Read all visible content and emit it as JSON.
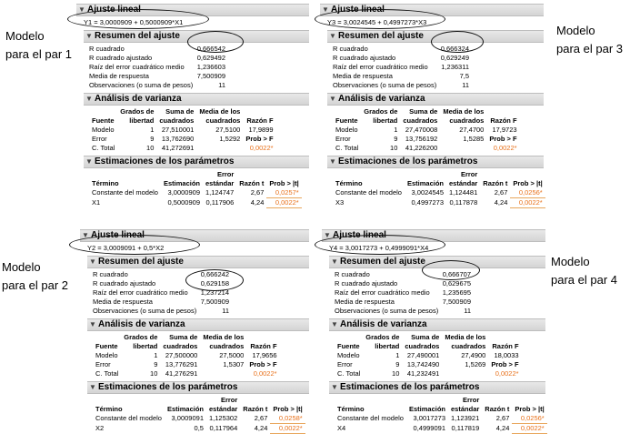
{
  "labels": {
    "m1": [
      "Modelo",
      "para el par 1"
    ],
    "m2": [
      "Modelo",
      "para el par 2"
    ],
    "m3": [
      "Modelo",
      "para el par 3"
    ],
    "m4": [
      "Modelo",
      "para el par 4"
    ]
  },
  "sections": {
    "fit": "Ajuste lineal",
    "summary": "Resumen del ajuste",
    "anova": "Análisis de varianza",
    "params": "Estimaciones de los parámetros"
  },
  "summary_labels": {
    "r2": "R cuadrado",
    "r2adj": "R cuadrado ajustado",
    "rmse": "Raíz del error cuadrático medio",
    "mean": "Media de respuesta",
    "obs": "Observaciones (o suma de pesos)"
  },
  "anova_headers": {
    "src": "Fuente",
    "df": [
      "Grados de",
      "libertad"
    ],
    "ss": [
      "Suma de",
      "cuadrados"
    ],
    "ms": [
      "Media de los",
      "cuadrados"
    ],
    "f": "Razón F",
    "p": "Prob > F"
  },
  "anova_sources": [
    "Modelo",
    "Error",
    "C. Total"
  ],
  "param_headers": {
    "term": "Término",
    "est": "Estimación",
    "se": [
      "Error",
      "estándar"
    ],
    "t": "Razón t",
    "p": "Prob > |t|"
  },
  "intercept_label": "Constante del modelo",
  "panels": {
    "p1": {
      "equation": "Y1 = 3,0000909 + 0,5000909*X1",
      "summary": [
        "0,666542",
        "0,629492",
        "1,236603",
        "7,500909",
        "11"
      ],
      "anova": {
        "model": [
          "1",
          "27,510001",
          "27,5100",
          "17,9899"
        ],
        "error": [
          "9",
          "13,762690",
          "1,5292"
        ],
        "total": [
          "10",
          "41,272691"
        ],
        "p": "0,0022*"
      },
      "params": [
        {
          "term": "Constante del modelo",
          "est": "3,0000909",
          "se": "1,124747",
          "t": "2,67",
          "p": "0,0257*"
        },
        {
          "term": "X1",
          "est": "0,5000909",
          "se": "0,117906",
          "t": "4,24",
          "p": "0,0022*"
        }
      ]
    },
    "p3": {
      "equation": "Y3 = 3,0024545 + 0,4997273*X3",
      "summary": [
        "0,666324",
        "0,629249",
        "1,236311",
        "7,5",
        "11"
      ],
      "anova": {
        "model": [
          "1",
          "27,470008",
          "27,4700",
          "17,9723"
        ],
        "error": [
          "9",
          "13,756192",
          "1,5285"
        ],
        "total": [
          "10",
          "41,226200"
        ],
        "p": "0,0022*"
      },
      "params": [
        {
          "term": "Constante del modelo",
          "est": "3,0024545",
          "se": "1,124481",
          "t": "2,67",
          "p": "0,0256*"
        },
        {
          "term": "X3",
          "est": "0,4997273",
          "se": "0,117878",
          "t": "4,24",
          "p": "0,0022*"
        }
      ]
    },
    "p2": {
      "equation": "Y2 = 3,0009091 + 0,5*X2",
      "summary": [
        "0,666242",
        "0,629158",
        "1,237214",
        "7,500909",
        "11"
      ],
      "anova": {
        "model": [
          "1",
          "27,500000",
          "27,5000",
          "17,9656"
        ],
        "error": [
          "9",
          "13,776291",
          "1,5307"
        ],
        "total": [
          "10",
          "41,276291"
        ],
        "p": "0,0022*"
      },
      "params": [
        {
          "term": "Constante del modelo",
          "est": "3,0009091",
          "se": "1,125302",
          "t": "2,67",
          "p": "0,0258*"
        },
        {
          "term": "X2",
          "est": "0,5",
          "se": "0,117964",
          "t": "4,24",
          "p": "0,0022*"
        }
      ]
    },
    "p4": {
      "equation": "Y4 = 3,0017273 + 0,4999091*X4",
      "summary": [
        "0,666707",
        "0,629675",
        "1,235695",
        "7,500909",
        "11"
      ],
      "anova": {
        "model": [
          "1",
          "27,490001",
          "27,4900",
          "18,0033"
        ],
        "error": [
          "9",
          "13,742490",
          "1,5269"
        ],
        "total": [
          "10",
          "41,232491"
        ],
        "p": "0,0022*"
      },
      "params": [
        {
          "term": "Constante del modelo",
          "est": "3,0017273",
          "se": "1,123921",
          "t": "2,67",
          "p": "0,0256*"
        },
        {
          "term": "X4",
          "est": "0,4999091",
          "se": "0,117819",
          "t": "4,24",
          "p": "0,0022*"
        }
      ]
    }
  }
}
